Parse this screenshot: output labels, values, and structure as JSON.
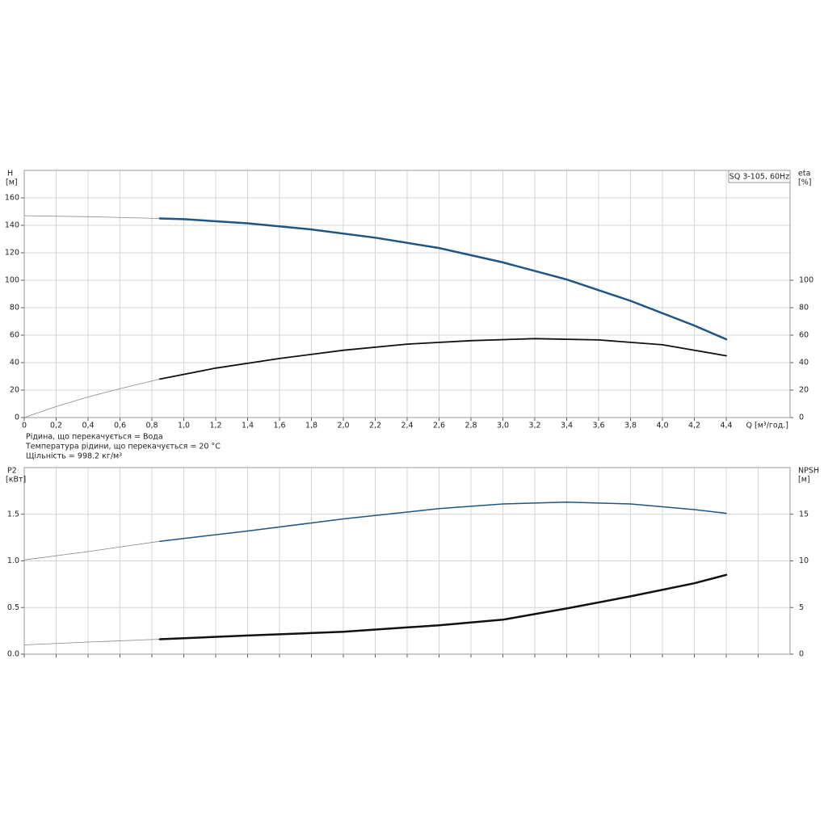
{
  "chart_data": [
    {
      "type": "line",
      "legend_box": "SQ 3-105, 60Hz",
      "ylabel": [
        "H",
        "[м]"
      ],
      "y2label": [
        "eta",
        "[%]"
      ],
      "xlabel": "Q [м³/год.]",
      "annotations": [
        "Рідина, що перекачується = Вода",
        "Температура рідини, що перекачується = 20 °C",
        "Щільність = 998.2 кг/м³"
      ],
      "xlim": [
        0,
        4.8
      ],
      "xticks": [
        0,
        {
          "value": 0.2,
          "label": "0,2"
        },
        {
          "value": 0.4,
          "label": "0,4"
        },
        {
          "value": 0.6,
          "label": "0,6"
        },
        {
          "value": 0.8,
          "label": "0,8"
        },
        {
          "value": 1.0,
          "label": "1,0"
        },
        {
          "value": 1.2,
          "label": "1,2"
        },
        {
          "value": 1.4,
          "label": "1,4"
        },
        {
          "value": 1.6,
          "label": "1,6"
        },
        {
          "value": 1.8,
          "label": "1,8"
        },
        {
          "value": 2.0,
          "label": "2,0"
        },
        {
          "value": 2.2,
          "label": "2,2"
        },
        {
          "value": 2.4,
          "label": "2,4"
        },
        {
          "value": 2.6,
          "label": "2,6"
        },
        {
          "value": 2.8,
          "label": "2,8"
        },
        {
          "value": 3.0,
          "label": "3,0"
        },
        {
          "value": 3.2,
          "label": "3,2"
        },
        {
          "value": 3.4,
          "label": "3,4"
        },
        {
          "value": 3.6,
          "label": "3,6"
        },
        {
          "value": 3.8,
          "label": "3,8"
        },
        {
          "value": 4.0,
          "label": "4,0"
        },
        {
          "value": 4.2,
          "label": "4,2"
        },
        {
          "value": 4.4,
          "label": "4,4"
        }
      ],
      "ylim": [
        0,
        180
      ],
      "yticks": [
        0,
        20,
        40,
        60,
        80,
        100,
        120,
        140,
        160
      ],
      "y2lim": [
        0,
        180
      ],
      "y2ticks": [
        0,
        20,
        40,
        60,
        80,
        100
      ],
      "grid": true,
      "series": [
        {
          "color": "#888888",
          "width": 0.8,
          "x": [
            0,
            0.4,
            0.85
          ],
          "values": [
            147,
            146.3,
            145
          ]
        },
        {
          "color": "#1f5583",
          "width": 2.5,
          "x": [
            0.85,
            1.0,
            1.4,
            1.8,
            2.2,
            2.6,
            3.0,
            3.4,
            3.8,
            4.2,
            4.4
          ],
          "values": [
            145,
            144.5,
            141.5,
            137,
            131,
            123.5,
            113,
            100.5,
            85,
            67,
            57
          ]
        },
        {
          "color": "#888888",
          "width": 0.8,
          "axis": "y2",
          "x": [
            0,
            0.2,
            0.4,
            0.6,
            0.85
          ],
          "values": [
            0,
            8,
            15,
            21,
            28
          ]
        },
        {
          "color": "#111111",
          "width": 1.8,
          "axis": "y2",
          "x": [
            0.85,
            1.2,
            1.6,
            2.0,
            2.4,
            2.8,
            3.2,
            3.6,
            4.0,
            4.4
          ],
          "values": [
            28,
            36,
            43,
            49,
            53.5,
            56,
            57.5,
            56.5,
            53,
            45
          ]
        }
      ]
    },
    {
      "type": "line",
      "ylabel": [
        "P2",
        "[кВт]"
      ],
      "y2label": [
        "NPSH",
        "[м]"
      ],
      "xlim": [
        0,
        4.8
      ],
      "xticks": [
        0,
        0.2,
        0.4,
        0.6,
        0.8,
        1.0,
        1.2,
        1.4,
        1.6,
        1.8,
        2.0,
        2.2,
        2.4,
        2.6,
        2.8,
        3.0,
        3.2,
        3.4,
        3.6,
        3.8,
        4.0,
        4.2,
        4.4,
        4.6
      ],
      "ylim": [
        0,
        2
      ],
      "yticks": [
        {
          "value": 0,
          "label": "0.0"
        },
        0.5,
        {
          "value": 1,
          "label": "1.0"
        },
        1.5
      ],
      "y2lim": [
        0,
        20
      ],
      "y2ticks": [
        0,
        5,
        10,
        15
      ],
      "grid": true,
      "series": [
        {
          "color": "#888888",
          "width": 0.8,
          "x": [
            0,
            0.4,
            0.85
          ],
          "values": [
            1.01,
            1.1,
            1.21
          ]
        },
        {
          "color": "#1f5583",
          "width": 1.5,
          "x": [
            0.85,
            1.4,
            2.0,
            2.6,
            3.0,
            3.4,
            3.8,
            4.2,
            4.4
          ],
          "values": [
            1.21,
            1.32,
            1.45,
            1.56,
            1.61,
            1.63,
            1.61,
            1.55,
            1.51
          ]
        },
        {
          "color": "#888888",
          "width": 0.8,
          "axis": "y2",
          "x": [
            0,
            0.4,
            0.85
          ],
          "values": [
            1.0,
            1.3,
            1.6
          ]
        },
        {
          "color": "#111111",
          "width": 2.5,
          "axis": "y2",
          "x": [
            0.85,
            1.4,
            2.0,
            2.6,
            3.0,
            3.4,
            3.8,
            4.2,
            4.4
          ],
          "values": [
            1.6,
            2.0,
            2.4,
            3.1,
            3.7,
            4.9,
            6.2,
            7.6,
            8.5
          ]
        }
      ]
    }
  ]
}
